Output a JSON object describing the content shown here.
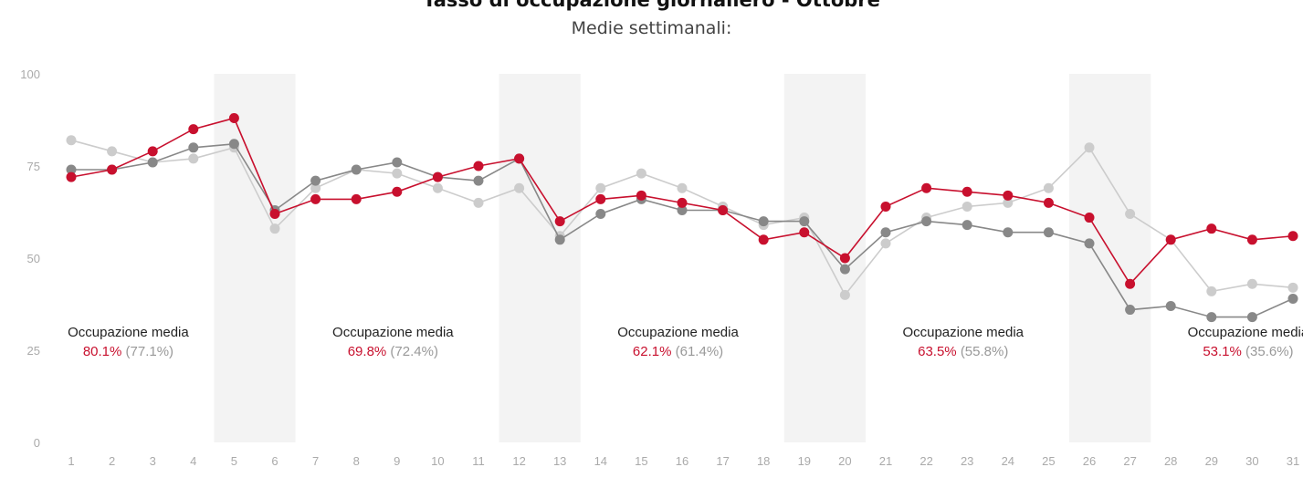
{
  "title": "Tasso di occupazione giornaliero - Ottobre",
  "subtitle": "Medie settimanali:",
  "chart_data": {
    "type": "line",
    "x": [
      1,
      2,
      3,
      4,
      5,
      6,
      7,
      8,
      9,
      10,
      11,
      12,
      13,
      14,
      15,
      16,
      17,
      18,
      19,
      20,
      21,
      22,
      23,
      24,
      25,
      26,
      27,
      28,
      29,
      30,
      31
    ],
    "ylim": [
      0,
      100
    ],
    "yticks": [
      0,
      25,
      50,
      75,
      100
    ],
    "grid": false,
    "shaded_x": [
      5,
      12,
      19,
      26
    ],
    "series": [
      {
        "color": "#cccccc",
        "values": [
          82,
          79,
          76,
          77,
          80,
          58,
          69,
          74,
          73,
          69,
          65,
          69,
          56,
          69,
          73,
          69,
          64,
          59,
          61,
          40,
          54,
          61,
          64,
          65,
          69,
          80,
          62,
          55,
          41,
          43,
          42
        ]
      },
      {
        "color": "#888888",
        "values": [
          74,
          74,
          76,
          80,
          81,
          63,
          71,
          74,
          76,
          72,
          71,
          77,
          55,
          62,
          66,
          63,
          63,
          60,
          60,
          47,
          57,
          60,
          59,
          57,
          57,
          54,
          36,
          37,
          34,
          34,
          39
        ]
      },
      {
        "color": "#c8102e",
        "values": [
          72,
          74,
          79,
          85,
          88,
          62,
          66,
          66,
          68,
          72,
          75,
          77,
          60,
          66,
          67,
          65,
          63,
          55,
          57,
          50,
          64,
          69,
          68,
          67,
          65,
          61,
          43,
          55,
          58,
          55,
          56
        ]
      }
    ],
    "annotations": [
      {
        "label": "Occupazione media",
        "value": "80.1%",
        "previous": "(77.1%)",
        "x_center": 2.4
      },
      {
        "label": "Occupazione media",
        "value": "69.8%",
        "previous": "(72.4%)",
        "x_center": 8.9
      },
      {
        "label": "Occupazione media",
        "value": "62.1%",
        "previous": "(61.4%)",
        "x_center": 15.9
      },
      {
        "label": "Occupazione media",
        "value": "63.5%",
        "previous": "(55.8%)",
        "x_center": 22.9
      },
      {
        "label": "Occupazione media",
        "value": "53.1%",
        "previous": "(35.6%)",
        "x_center": 29.9
      }
    ]
  }
}
